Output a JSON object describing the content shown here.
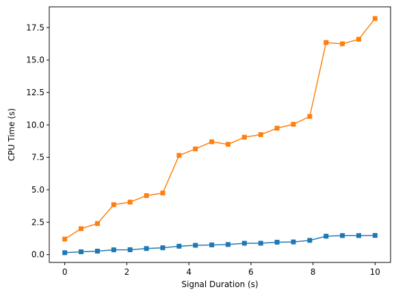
{
  "chart_data": {
    "type": "line",
    "title": "",
    "xlabel": "Signal Duration (s)",
    "ylabel": "CPU Time (s)",
    "xlim": [
      -0.5,
      10.5
    ],
    "ylim": [
      -0.6,
      19.1
    ],
    "grid": false,
    "legend": "none",
    "x_ticks": [
      0,
      2,
      4,
      6,
      8,
      10
    ],
    "x_tick_labels": [
      "0",
      "2",
      "4",
      "6",
      "8",
      "10"
    ],
    "y_ticks": [
      0,
      2.5,
      5,
      7.5,
      10,
      12.5,
      15,
      17.5
    ],
    "y_tick_labels": [
      "0.0",
      "2.5",
      "5.0",
      "7.5",
      "10.0",
      "12.5",
      "15.0",
      "17.5"
    ],
    "x": [
      0,
      0.526,
      1.053,
      1.579,
      2.105,
      2.632,
      3.158,
      3.684,
      4.211,
      4.737,
      5.263,
      5.789,
      6.316,
      6.842,
      7.368,
      7.895,
      8.421,
      8.947,
      9.474,
      10
    ],
    "series": [
      {
        "color": "#1f77b4",
        "marker": "square",
        "values": [
          0.15,
          0.22,
          0.27,
          0.37,
          0.38,
          0.47,
          0.53,
          0.65,
          0.72,
          0.75,
          0.78,
          0.88,
          0.88,
          0.96,
          0.98,
          1.1,
          1.42,
          1.47,
          1.47,
          1.48
        ]
      },
      {
        "color": "#ff7f0e",
        "marker": "square",
        "values": [
          1.2,
          2.0,
          2.4,
          3.85,
          4.05,
          4.55,
          4.75,
          7.65,
          8.15,
          8.7,
          8.5,
          9.05,
          9.25,
          9.75,
          10.05,
          10.65,
          16.35,
          16.25,
          16.6,
          18.2
        ]
      }
    ]
  }
}
